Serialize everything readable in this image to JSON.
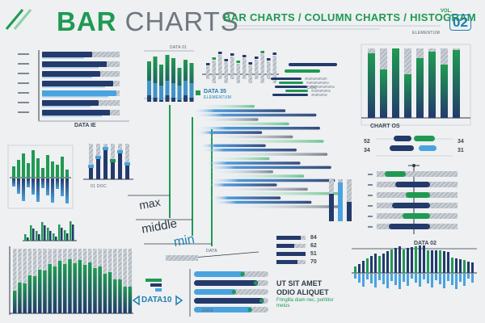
{
  "header": {
    "title_strong": "BAR",
    "title_light": "CHARTS",
    "subtitle": "BAR CHARTS / COLUMN CHARTS / HISTOGRAM",
    "vol_label": "VOL.",
    "vol_number": "02",
    "elementum": "ELEMENTUM"
  },
  "labels": {
    "data_ie": "DATA IE",
    "data_35": "DATA 35",
    "elementum_small": "ELEMENTUM",
    "doc": "DOC",
    "chart_os": "CHART OS",
    "d01_doc": "01 DOC",
    "data_top": "DATA 01",
    "data_02": "DATA 02",
    "data_bottom": "DATA",
    "data_mid": "DATA",
    "data10": "DATA10"
  },
  "scale_words": {
    "max": "max",
    "middle": "middle",
    "min": "min"
  },
  "lorem": {
    "line1": "UT SIT AMET",
    "line2": "ODIO ALIQUET",
    "line3": "Fringilla diam nec, porttitor metus"
  },
  "side_numbers": {
    "left": [
      "52",
      "34"
    ],
    "right": [
      "34",
      "31"
    ],
    "stack": [
      "84",
      "62",
      "51",
      "70"
    ]
  },
  "colors": {
    "green": "#1f9a52",
    "blue": "#1f7fae",
    "navy": "#233a6b",
    "light_blue": "#4aa3df",
    "gray": "#a9b2bc",
    "text": "#2f3a45"
  }
}
